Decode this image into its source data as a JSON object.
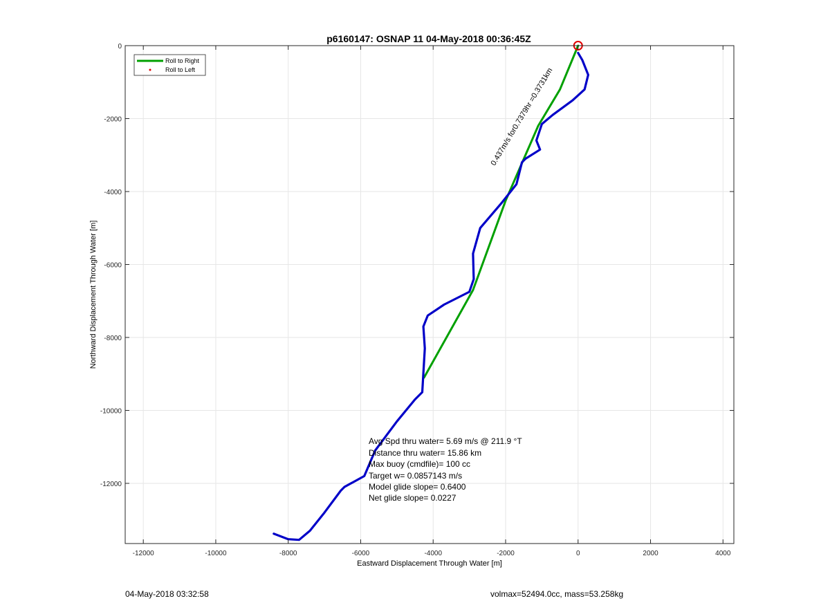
{
  "chart_data": {
    "type": "line",
    "title": "p6160147: OSNAP 11 04-May-2018 00:36:45Z",
    "xlabel": "Eastward Displacement Through Water [m]",
    "ylabel": "Northward Displacement Through Water [m]",
    "xlim": [
      -12500,
      4300
    ],
    "ylim": [
      -13650,
      0
    ],
    "xticks": [
      "-12000",
      "-10000",
      "-8000",
      "-6000",
      "-4000",
      "-2000",
      "0",
      "2000",
      "4000"
    ],
    "yticks": [
      "0",
      "-2000",
      "-4000",
      "-6000",
      "-8000",
      "-10000",
      "-12000"
    ],
    "grid": true,
    "legend": {
      "placement": "top-left",
      "entries": [
        {
          "label": "Roll to Right",
          "color": "#00a000"
        },
        {
          "label": "Roll to Left",
          "color": "#e00000"
        }
      ]
    },
    "series": [
      {
        "name": "Roll to Right",
        "color": "#00a000",
        "x": [
          0,
          -500,
          -1100,
          -2000,
          -2900,
          -4250
        ],
        "y": [
          0,
          -1200,
          -2200,
          -4250,
          -6700,
          -9100
        ]
      },
      {
        "color": "#0000c8",
        "x": [
          0,
          120,
          280,
          180,
          -150,
          -700,
          -1000,
          -1050,
          -1150,
          -1050,
          -1450,
          -1550,
          -1700,
          -2100,
          -2700,
          -2900,
          -2880,
          -3000,
          -3700,
          -4150,
          -4270,
          -4230,
          -4300,
          -4500,
          -5000,
          -5600,
          -5900,
          -6450,
          -6550,
          -7000,
          -7400,
          -7700,
          -8000,
          -8400
        ],
        "y": [
          -200,
          -400,
          -800,
          -1200,
          -1500,
          -1900,
          -2150,
          -2300,
          -2600,
          -2850,
          -3100,
          -3200,
          -3800,
          -4300,
          -5000,
          -5700,
          -6400,
          -6750,
          -7100,
          -7400,
          -7700,
          -8300,
          -9500,
          -9700,
          -10300,
          -11100,
          -11800,
          -12100,
          -12200,
          -12800,
          -13300,
          -13550,
          -13530,
          -13380
        ]
      }
    ],
    "markers": [
      {
        "label": "start",
        "x": 0,
        "y": 0,
        "color": "#e00000",
        "shape": "circle"
      }
    ],
    "annotations": [
      {
        "text": "0.437m/s for0.7379hr =0.3731km",
        "x": -2300,
        "y": -3300,
        "angle_deg": -59
      }
    ],
    "stats": [
      "Avg Spd thru water=  5.69 m/s @ 211.9 °T",
      "Distance thru water= 15.86 km",
      "Max buoy (cmdfile)= 100 cc",
      "Target w= 0.0857143 m/s",
      "Model glide slope= 0.6400",
      "Net glide slope= 0.0227"
    ]
  },
  "footer": {
    "timestamp": "04-May-2018 03:32:58",
    "volume_mass": "volmax=52494.0cc, mass=53.258kg"
  }
}
